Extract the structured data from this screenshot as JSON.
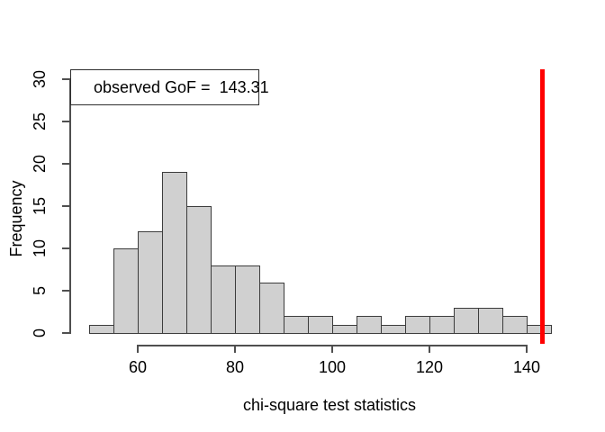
{
  "colors": {
    "background": "#ffffff",
    "bar_fill": "#d0d0d0",
    "bar_border": "#3c3c3c",
    "axis": "#4f4f4f",
    "text": "#000000",
    "observed_line": "#ff0000",
    "legend_background": "#ffffff",
    "legend_border": "#2e2e2e"
  },
  "legend": {
    "text": "observed GoF =  143.31",
    "position": "topleft"
  },
  "chart_data": {
    "type": "bar",
    "subtype": "histogram",
    "title": "",
    "xlabel": "chi-square test statistics",
    "ylabel": "Frequency",
    "bin_start": 50,
    "bin_width": 5,
    "counts": [
      1,
      10,
      12,
      19,
      15,
      8,
      8,
      6,
      2,
      2,
      1,
      2,
      1,
      2,
      2,
      3,
      3,
      2,
      1
    ],
    "xlim": [
      50,
      145
    ],
    "ylim": [
      0,
      30
    ],
    "x_ticks": [
      60,
      80,
      100,
      120,
      140
    ],
    "y_ticks": [
      0,
      5,
      10,
      15,
      20,
      25,
      30
    ],
    "grid": false,
    "legend_position": "topleft",
    "annotation_text": "observed GoF =  143.31",
    "observed_value": 143.31,
    "observed_line_color": "#ff0000"
  }
}
